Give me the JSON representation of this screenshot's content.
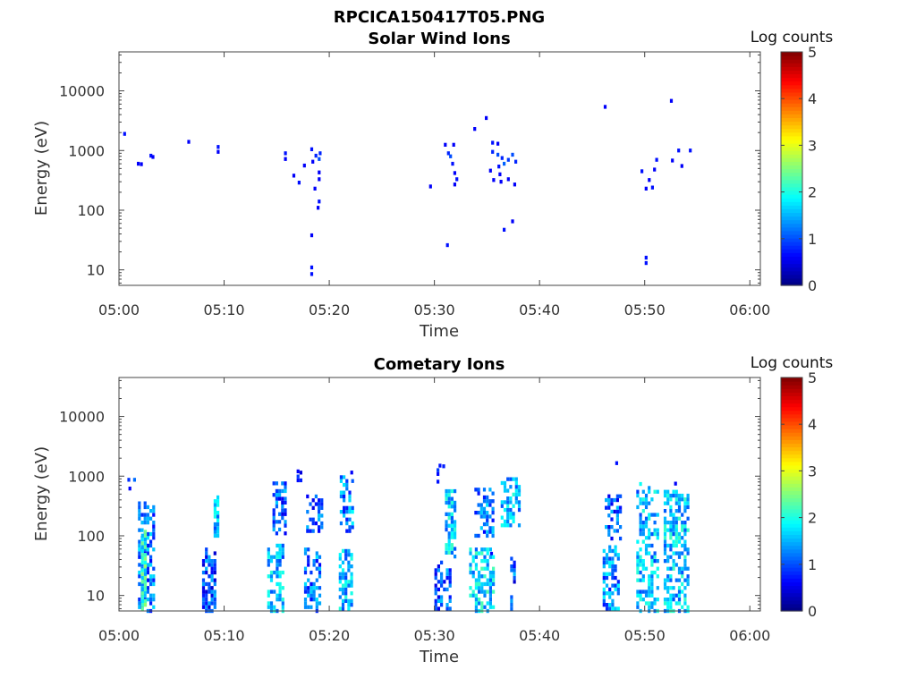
{
  "figure_title": "RPCICA150417T05.PNG",
  "chart_data": [
    {
      "type": "heatmap",
      "title": "Solar Wind Ions",
      "xlabel": "Time",
      "ylabel": "Energy (eV)",
      "x_ticks": [
        "05:00",
        "05:10",
        "05:20",
        "05:30",
        "05:40",
        "05:50",
        "06:00"
      ],
      "xlim_minutes": [
        0,
        61
      ],
      "y_ticks": [
        "10",
        "100",
        "1000",
        "10000"
      ],
      "ylim_eV": [
        5.5,
        45000
      ],
      "y_scale": "log",
      "colorbar": {
        "label": "Log counts",
        "ticks": [
          "0",
          "1",
          "2",
          "3",
          "4",
          "5"
        ],
        "range": [
          0,
          5
        ]
      },
      "cells": [
        [
          0.4,
          1900,
          0.7
        ],
        [
          1.7,
          600,
          0.6
        ],
        [
          2.0,
          590,
          0.6
        ],
        [
          2.9,
          820,
          0.7
        ],
        [
          3.1,
          780,
          0.6
        ],
        [
          6.5,
          1400,
          0.6
        ],
        [
          9.3,
          1150,
          0.7
        ],
        [
          9.3,
          950,
          0.6
        ],
        [
          15.7,
          900,
          0.7
        ],
        [
          15.7,
          720,
          0.6
        ],
        [
          16.5,
          380,
          0.6
        ],
        [
          17.0,
          290,
          0.7
        ],
        [
          17.5,
          560,
          0.6
        ],
        [
          18.2,
          1050,
          0.7
        ],
        [
          18.6,
          820,
          0.8
        ],
        [
          18.9,
          720,
          1.0
        ],
        [
          19.0,
          900,
          0.8
        ],
        [
          18.3,
          650,
          0.6
        ],
        [
          18.9,
          430,
          0.6
        ],
        [
          18.9,
          330,
          0.6
        ],
        [
          18.5,
          230,
          0.6
        ],
        [
          18.9,
          140,
          0.7
        ],
        [
          18.8,
          110,
          0.6
        ],
        [
          18.2,
          38,
          0.6
        ],
        [
          18.2,
          11,
          0.7
        ],
        [
          18.2,
          8.5,
          0.7
        ],
        [
          29.5,
          250,
          0.6
        ],
        [
          30.9,
          1250,
          0.6
        ],
        [
          31.2,
          900,
          0.8
        ],
        [
          31.4,
          800,
          1.0
        ],
        [
          31.7,
          1250,
          0.6
        ],
        [
          31.6,
          600,
          0.7
        ],
        [
          31.8,
          420,
          0.6
        ],
        [
          32.0,
          330,
          0.7
        ],
        [
          31.8,
          270,
          0.6
        ],
        [
          31.1,
          26,
          0.7
        ],
        [
          33.7,
          2300,
          0.6
        ],
        [
          34.8,
          3500,
          0.6
        ],
        [
          35.4,
          1350,
          0.7
        ],
        [
          35.9,
          1300,
          0.6
        ],
        [
          35.4,
          950,
          0.8
        ],
        [
          35.9,
          850,
          1.0
        ],
        [
          36.3,
          750,
          0.8
        ],
        [
          36.5,
          600,
          1.1
        ],
        [
          36.9,
          700,
          0.9
        ],
        [
          37.3,
          850,
          1.0
        ],
        [
          37.6,
          650,
          0.8
        ],
        [
          36.0,
          540,
          0.7
        ],
        [
          35.2,
          460,
          0.6
        ],
        [
          36.1,
          400,
          0.6
        ],
        [
          35.5,
          320,
          0.6
        ],
        [
          36.2,
          300,
          0.6
        ],
        [
          36.9,
          330,
          0.6
        ],
        [
          37.5,
          270,
          0.6
        ],
        [
          36.5,
          47,
          0.7
        ],
        [
          37.3,
          65,
          0.6
        ],
        [
          46.1,
          5400,
          0.6
        ],
        [
          52.4,
          6800,
          0.6
        ],
        [
          49.6,
          450,
          0.7
        ],
        [
          50.3,
          320,
          0.6
        ],
        [
          50.6,
          240,
          0.7
        ],
        [
          50.0,
          230,
          0.6
        ],
        [
          50.8,
          480,
          0.6
        ],
        [
          51.0,
          700,
          0.7
        ],
        [
          52.5,
          680,
          0.6
        ],
        [
          53.1,
          1000,
          0.7
        ],
        [
          53.4,
          550,
          0.6
        ],
        [
          54.2,
          1000,
          0.7
        ],
        [
          50.0,
          16,
          0.7
        ],
        [
          50.0,
          13,
          0.7
        ]
      ]
    },
    {
      "type": "heatmap",
      "title": "Cometary Ions",
      "xlabel": "Time",
      "ylabel": "Energy (eV)",
      "x_ticks": [
        "05:00",
        "05:10",
        "05:20",
        "05:30",
        "05:40",
        "05:50",
        "06:00"
      ],
      "xlim_minutes": [
        0,
        61
      ],
      "y_ticks": [
        "10",
        "100",
        "1000",
        "10000"
      ],
      "ylim_eV": [
        5.5,
        45000
      ],
      "y_scale": "log",
      "colorbar": {
        "label": "Log counts",
        "ticks": [
          "0",
          "1",
          "2",
          "3",
          "4",
          "5"
        ],
        "range": [
          0,
          5
        ]
      },
      "columns": [
        {
          "t": [
            0.8,
            1.8
          ],
          "lo": 750,
          "hi": 1000,
          "level": 0.7,
          "density": 0.45
        },
        {
          "t": [
            1.8,
            3.3
          ],
          "lo": 5.5,
          "hi": 380,
          "level": 1.2,
          "density": 0.55
        },
        {
          "t": [
            2.1,
            2.4
          ],
          "lo": 6,
          "hi": 120,
          "level": 2.0,
          "density": 0.8
        },
        {
          "t": [
            7.9,
            9.0
          ],
          "lo": 5.5,
          "hi": 60,
          "level": 1.0,
          "density": 0.6
        },
        {
          "t": [
            9.0,
            9.3
          ],
          "lo": 100,
          "hi": 450,
          "level": 1.5,
          "density": 0.7
        },
        {
          "t": [
            14.1,
            15.6
          ],
          "lo": 5.5,
          "hi": 70,
          "level": 1.5,
          "density": 0.6
        },
        {
          "t": [
            14.6,
            15.9
          ],
          "lo": 110,
          "hi": 800,
          "level": 1.1,
          "density": 0.5
        },
        {
          "t": [
            16.9,
            17.4
          ],
          "lo": 850,
          "hi": 1200,
          "level": 0.7,
          "density": 0.5
        },
        {
          "t": [
            17.6,
            19.0
          ],
          "lo": 5.5,
          "hi": 60,
          "level": 1.2,
          "density": 0.5
        },
        {
          "t": [
            17.8,
            19.3
          ],
          "lo": 120,
          "hi": 600,
          "level": 1.1,
          "density": 0.5
        },
        {
          "t": [
            20.9,
            22.2
          ],
          "lo": 6,
          "hi": 60,
          "level": 1.5,
          "density": 0.6
        },
        {
          "t": [
            21.0,
            22.3
          ],
          "lo": 120,
          "hi": 1100,
          "level": 1.3,
          "density": 0.45
        },
        {
          "t": [
            30.0,
            31.5
          ],
          "lo": 6,
          "hi": 40,
          "level": 1.0,
          "density": 0.55
        },
        {
          "t": [
            30.2,
            31.0
          ],
          "lo": 600,
          "hi": 1500,
          "level": 0.7,
          "density": 0.35
        },
        {
          "t": [
            31.0,
            31.9
          ],
          "lo": 45,
          "hi": 600,
          "level": 1.6,
          "density": 0.6
        },
        {
          "t": [
            33.3,
            35.5
          ],
          "lo": 5.5,
          "hi": 60,
          "level": 1.7,
          "density": 0.6
        },
        {
          "t": [
            33.8,
            35.6
          ],
          "lo": 100,
          "hi": 600,
          "level": 1.2,
          "density": 0.5
        },
        {
          "t": [
            36.3,
            38.0
          ],
          "lo": 150,
          "hi": 950,
          "level": 1.5,
          "density": 0.5
        },
        {
          "t": [
            37.2,
            37.5
          ],
          "lo": 6,
          "hi": 45,
          "level": 1.0,
          "density": 0.6
        },
        {
          "t": [
            46.0,
            47.6
          ],
          "lo": 6,
          "hi": 70,
          "level": 1.3,
          "density": 0.6
        },
        {
          "t": [
            46.2,
            47.7
          ],
          "lo": 90,
          "hi": 600,
          "level": 1.0,
          "density": 0.45
        },
        {
          "t": [
            49.2,
            51.3
          ],
          "lo": 5.5,
          "hi": 800,
          "level": 1.5,
          "density": 0.5
        },
        {
          "t": [
            51.8,
            54.2
          ],
          "lo": 5.5,
          "hi": 600,
          "level": 1.6,
          "density": 0.55
        }
      ],
      "cells": [
        [
          47.2,
          1650,
          0.7
        ],
        [
          52.8,
          750,
          0.6
        ],
        [
          30.4,
          1500,
          0.7
        ],
        [
          16.9,
          1200,
          0.6
        ],
        [
          22.0,
          1150,
          0.6
        ],
        [
          35.3,
          50,
          0.6
        ],
        [
          0.9,
          620,
          0.6
        ]
      ]
    }
  ]
}
